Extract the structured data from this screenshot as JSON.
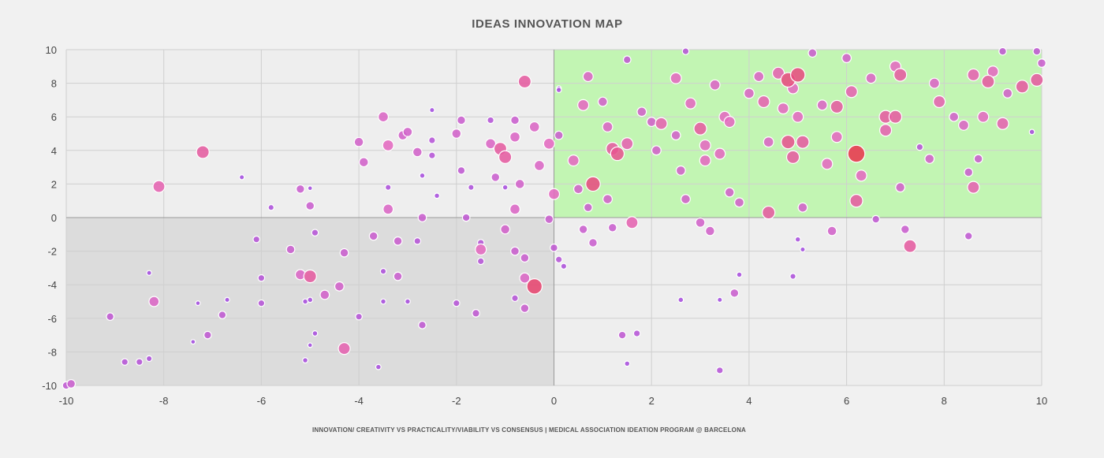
{
  "colors": {
    "background": "#f1f1f1",
    "quadrant_top_right": "#c2f5b3",
    "quadrant_bottom_left": "#dcdcdc",
    "quadrant_other": "#eeeeee",
    "grid": "#cfcfcf",
    "axis_zero": "#999999",
    "point_low": "#a44de0",
    "point_mid": "#e46ac0",
    "point_high": "#e8384f"
  },
  "chart_data": {
    "type": "scatter",
    "title": "IDEAS INNOVATION MAP",
    "footer": "INNOVATION/ CREATIVITY VS PRACTICALITY/VIABILITY VS CONSENSUS  |  MEDICAL ASSOCIATION IDEATION PROGRAM @ BARCELONA",
    "xlabel": "",
    "ylabel": "",
    "xlim": [
      -10,
      10
    ],
    "ylim": [
      -10,
      10
    ],
    "x_ticks": [
      -10,
      -8,
      -6,
      -4,
      -2,
      0,
      2,
      4,
      6,
      8,
      10
    ],
    "y_ticks": [
      10,
      8,
      6,
      4,
      2,
      0,
      -2,
      -4,
      -6,
      -8,
      -10
    ],
    "grid": true,
    "legend": "none",
    "bubble_size_meaning": "consensus",
    "points": [
      {
        "x": -7.2,
        "y": 3.9,
        "s": 0.55
      },
      {
        "x": -8.1,
        "y": 1.85,
        "s": 0.5
      },
      {
        "x": -6.4,
        "y": 2.4,
        "s": 0.1
      },
      {
        "x": -5.8,
        "y": 0.6,
        "s": 0.15
      },
      {
        "x": -5.2,
        "y": 1.7,
        "s": 0.3
      },
      {
        "x": -5.0,
        "y": 1.75,
        "s": 0.08
      },
      {
        "x": -5.0,
        "y": 0.7,
        "s": 0.3
      },
      {
        "x": -4.9,
        "y": -0.9,
        "s": 0.2
      },
      {
        "x": -5.4,
        "y": -1.9,
        "s": 0.3
      },
      {
        "x": -5.0,
        "y": -3.5,
        "s": 0.55
      },
      {
        "x": -5.2,
        "y": -3.4,
        "s": 0.4
      },
      {
        "x": -4.7,
        "y": -4.6,
        "s": 0.35
      },
      {
        "x": -4.4,
        "y": -4.1,
        "s": 0.35
      },
      {
        "x": -4.3,
        "y": -2.1,
        "s": 0.3
      },
      {
        "x": -4.3,
        "y": -7.8,
        "s": 0.5
      },
      {
        "x": -4.0,
        "y": 4.5,
        "s": 0.35
      },
      {
        "x": -3.9,
        "y": 3.3,
        "s": 0.35
      },
      {
        "x": -3.5,
        "y": 6.0,
        "s": 0.4
      },
      {
        "x": -3.4,
        "y": 4.3,
        "s": 0.45
      },
      {
        "x": -3.1,
        "y": 4.9,
        "s": 0.35
      },
      {
        "x": -3.0,
        "y": 5.1,
        "s": 0.35
      },
      {
        "x": -2.8,
        "y": 3.9,
        "s": 0.35
      },
      {
        "x": -3.4,
        "y": 0.5,
        "s": 0.4
      },
      {
        "x": -3.4,
        "y": 1.8,
        "s": 0.15
      },
      {
        "x": -3.7,
        "y": -1.1,
        "s": 0.3
      },
      {
        "x": -3.2,
        "y": -1.4,
        "s": 0.3
      },
      {
        "x": -3.2,
        "y": -3.5,
        "s": 0.3
      },
      {
        "x": -3.5,
        "y": -3.2,
        "s": 0.15
      },
      {
        "x": -4.0,
        "y": -5.9,
        "s": 0.2
      },
      {
        "x": -3.6,
        "y": -8.9,
        "s": 0.12
      },
      {
        "x": -2.5,
        "y": 6.4,
        "s": 0.1
      },
      {
        "x": -2.5,
        "y": 4.6,
        "s": 0.2
      },
      {
        "x": -2.5,
        "y": 3.7,
        "s": 0.2
      },
      {
        "x": -2.7,
        "y": 2.5,
        "s": 0.12
      },
      {
        "x": -2.4,
        "y": 1.3,
        "s": 0.12
      },
      {
        "x": -2.7,
        "y": 0.0,
        "s": 0.3
      },
      {
        "x": -2.8,
        "y": -1.4,
        "s": 0.2
      },
      {
        "x": -2.7,
        "y": -6.4,
        "s": 0.25
      },
      {
        "x": -2.0,
        "y": 5.0,
        "s": 0.35
      },
      {
        "x": -1.9,
        "y": 5.8,
        "s": 0.3
      },
      {
        "x": -1.9,
        "y": 2.8,
        "s": 0.25
      },
      {
        "x": -1.7,
        "y": 1.8,
        "s": 0.15
      },
      {
        "x": -1.8,
        "y": 0.0,
        "s": 0.25
      },
      {
        "x": -1.5,
        "y": -1.5,
        "s": 0.2
      },
      {
        "x": -1.5,
        "y": -2.6,
        "s": 0.2
      },
      {
        "x": -1.6,
        "y": -5.7,
        "s": 0.25
      },
      {
        "x": -2.0,
        "y": -5.1,
        "s": 0.2
      },
      {
        "x": -1.3,
        "y": 5.8,
        "s": 0.2
      },
      {
        "x": -1.3,
        "y": 4.4,
        "s": 0.4
      },
      {
        "x": -1.1,
        "y": 4.1,
        "s": 0.55
      },
      {
        "x": -1.0,
        "y": 3.6,
        "s": 0.55
      },
      {
        "x": -1.2,
        "y": 2.4,
        "s": 0.3
      },
      {
        "x": -1.0,
        "y": 1.8,
        "s": 0.12
      },
      {
        "x": -1.0,
        "y": -0.7,
        "s": 0.35
      },
      {
        "x": -1.5,
        "y": -1.9,
        "s": 0.45
      },
      {
        "x": -0.8,
        "y": 0.5,
        "s": 0.4
      },
      {
        "x": -0.8,
        "y": -2.0,
        "s": 0.3
      },
      {
        "x": -0.6,
        "y": 8.1,
        "s": 0.55
      },
      {
        "x": -0.8,
        "y": 5.8,
        "s": 0.3
      },
      {
        "x": -0.8,
        "y": 4.8,
        "s": 0.4
      },
      {
        "x": -0.7,
        "y": 2.0,
        "s": 0.35
      },
      {
        "x": -0.6,
        "y": -2.4,
        "s": 0.3
      },
      {
        "x": -0.6,
        "y": -3.6,
        "s": 0.4
      },
      {
        "x": -0.6,
        "y": -5.4,
        "s": 0.3
      },
      {
        "x": -0.8,
        "y": -4.8,
        "s": 0.2
      },
      {
        "x": -0.4,
        "y": -4.1,
        "s": 0.7
      },
      {
        "x": -0.4,
        "y": 5.4,
        "s": 0.4
      },
      {
        "x": -0.3,
        "y": 3.1,
        "s": 0.4
      },
      {
        "x": -0.1,
        "y": 4.4,
        "s": 0.45
      },
      {
        "x": -0.1,
        "y": -0.1,
        "s": 0.3
      },
      {
        "x": 0.0,
        "y": 1.4,
        "s": 0.45
      },
      {
        "x": 0.0,
        "y": -1.8,
        "s": 0.25
      },
      {
        "x": 0.1,
        "y": -2.5,
        "s": 0.2
      },
      {
        "x": 0.1,
        "y": 4.9,
        "s": 0.3
      },
      {
        "x": 0.1,
        "y": 7.6,
        "s": 0.12
      },
      {
        "x": 0.1,
        "y": 7.7,
        "s": 0.1
      },
      {
        "x": 0.2,
        "y": -2.9,
        "s": 0.15
      },
      {
        "x": 0.4,
        "y": 3.4,
        "s": 0.45
      },
      {
        "x": 0.5,
        "y": 1.7,
        "s": 0.35
      },
      {
        "x": 0.7,
        "y": 8.4,
        "s": 0.4
      },
      {
        "x": 0.8,
        "y": 2.0,
        "s": 0.65
      },
      {
        "x": 0.7,
        "y": 0.6,
        "s": 0.3
      },
      {
        "x": 0.6,
        "y": -0.7,
        "s": 0.3
      },
      {
        "x": 0.8,
        "y": -1.5,
        "s": 0.3
      },
      {
        "x": 0.6,
        "y": 6.7,
        "s": 0.45
      },
      {
        "x": 1.0,
        "y": 6.9,
        "s": 0.35
      },
      {
        "x": 1.1,
        "y": 5.4,
        "s": 0.4
      },
      {
        "x": 1.2,
        "y": 4.1,
        "s": 0.55
      },
      {
        "x": 1.3,
        "y": 3.8,
        "s": 0.6
      },
      {
        "x": 1.1,
        "y": 1.1,
        "s": 0.35
      },
      {
        "x": 1.2,
        "y": -0.6,
        "s": 0.3
      },
      {
        "x": 1.5,
        "y": 4.4,
        "s": 0.5
      },
      {
        "x": 1.5,
        "y": 9.4,
        "s": 0.25
      },
      {
        "x": 1.6,
        "y": -0.3,
        "s": 0.5
      },
      {
        "x": 1.4,
        "y": -7.0,
        "s": 0.25
      },
      {
        "x": 1.7,
        "y": -6.9,
        "s": 0.2
      },
      {
        "x": 1.5,
        "y": -8.7,
        "s": 0.12
      },
      {
        "x": 1.8,
        "y": 6.3,
        "s": 0.35
      },
      {
        "x": 2.0,
        "y": 5.7,
        "s": 0.35
      },
      {
        "x": 2.1,
        "y": 4.0,
        "s": 0.35
      },
      {
        "x": 2.2,
        "y": 5.6,
        "s": 0.5
      },
      {
        "x": 2.5,
        "y": 8.3,
        "s": 0.45
      },
      {
        "x": 2.5,
        "y": 4.9,
        "s": 0.35
      },
      {
        "x": 2.6,
        "y": 2.8,
        "s": 0.35
      },
      {
        "x": 2.7,
        "y": 1.1,
        "s": 0.35
      },
      {
        "x": 2.6,
        "y": -4.9,
        "s": 0.12
      },
      {
        "x": 2.7,
        "y": 9.9,
        "s": 0.2
      },
      {
        "x": 2.8,
        "y": 6.8,
        "s": 0.45
      },
      {
        "x": 3.0,
        "y": 5.3,
        "s": 0.55
      },
      {
        "x": 3.1,
        "y": 4.3,
        "s": 0.45
      },
      {
        "x": 3.1,
        "y": 3.4,
        "s": 0.45
      },
      {
        "x": 3.2,
        "y": -0.8,
        "s": 0.35
      },
      {
        "x": 3.0,
        "y": -0.3,
        "s": 0.35
      },
      {
        "x": 3.3,
        "y": 7.9,
        "s": 0.4
      },
      {
        "x": 3.5,
        "y": 6.0,
        "s": 0.45
      },
      {
        "x": 3.6,
        "y": 5.7,
        "s": 0.45
      },
      {
        "x": 3.4,
        "y": 3.8,
        "s": 0.45
      },
      {
        "x": 3.6,
        "y": 1.5,
        "s": 0.35
      },
      {
        "x": 3.4,
        "y": -4.9,
        "s": 0.1
      },
      {
        "x": 3.4,
        "y": -9.1,
        "s": 0.2
      },
      {
        "x": 3.7,
        "y": -4.5,
        "s": 0.3
      },
      {
        "x": 3.8,
        "y": -3.4,
        "s": 0.12
      },
      {
        "x": 3.8,
        "y": 0.9,
        "s": 0.35
      },
      {
        "x": 4.0,
        "y": 7.4,
        "s": 0.4
      },
      {
        "x": 4.2,
        "y": 8.4,
        "s": 0.4
      },
      {
        "x": 4.3,
        "y": 6.9,
        "s": 0.5
      },
      {
        "x": 4.4,
        "y": 4.5,
        "s": 0.4
      },
      {
        "x": 4.4,
        "y": 0.3,
        "s": 0.55
      },
      {
        "x": 4.6,
        "y": 8.6,
        "s": 0.5
      },
      {
        "x": 4.7,
        "y": 6.5,
        "s": 0.45
      },
      {
        "x": 4.8,
        "y": 8.2,
        "s": 0.65
      },
      {
        "x": 4.8,
        "y": 4.5,
        "s": 0.6
      },
      {
        "x": 4.9,
        "y": 7.7,
        "s": 0.45
      },
      {
        "x": 5.0,
        "y": 8.5,
        "s": 0.65
      },
      {
        "x": 5.0,
        "y": 6.0,
        "s": 0.45
      },
      {
        "x": 4.9,
        "y": 3.6,
        "s": 0.55
      },
      {
        "x": 5.1,
        "y": 4.5,
        "s": 0.55
      },
      {
        "x": 5.3,
        "y": 9.8,
        "s": 0.3
      },
      {
        "x": 5.1,
        "y": 0.6,
        "s": 0.35
      },
      {
        "x": 5.0,
        "y": -1.3,
        "s": 0.12
      },
      {
        "x": 5.1,
        "y": -1.9,
        "s": 0.1
      },
      {
        "x": 4.9,
        "y": -3.5,
        "s": 0.15
      },
      {
        "x": 5.5,
        "y": 6.7,
        "s": 0.4
      },
      {
        "x": 5.6,
        "y": 3.2,
        "s": 0.45
      },
      {
        "x": 5.7,
        "y": -0.8,
        "s": 0.35
      },
      {
        "x": 5.8,
        "y": 6.6,
        "s": 0.55
      },
      {
        "x": 5.8,
        "y": 4.8,
        "s": 0.45
      },
      {
        "x": 6.0,
        "y": 9.5,
        "s": 0.35
      },
      {
        "x": 6.1,
        "y": 7.5,
        "s": 0.5
      },
      {
        "x": 6.2,
        "y": 3.8,
        "s": 0.8
      },
      {
        "x": 6.2,
        "y": 1.0,
        "s": 0.55
      },
      {
        "x": 6.3,
        "y": 2.5,
        "s": 0.45
      },
      {
        "x": 6.5,
        "y": 8.3,
        "s": 0.4
      },
      {
        "x": 6.6,
        "y": -0.1,
        "s": 0.25
      },
      {
        "x": 6.8,
        "y": 5.2,
        "s": 0.5
      },
      {
        "x": 6.8,
        "y": 6.0,
        "s": 0.55
      },
      {
        "x": 7.0,
        "y": 9.0,
        "s": 0.45
      },
      {
        "x": 7.0,
        "y": 6.0,
        "s": 0.55
      },
      {
        "x": 7.1,
        "y": 8.5,
        "s": 0.55
      },
      {
        "x": 7.1,
        "y": 1.8,
        "s": 0.35
      },
      {
        "x": 7.2,
        "y": -0.7,
        "s": 0.3
      },
      {
        "x": 7.3,
        "y": -1.7,
        "s": 0.55
      },
      {
        "x": 7.5,
        "y": 4.2,
        "s": 0.2
      },
      {
        "x": 7.7,
        "y": 3.5,
        "s": 0.35
      },
      {
        "x": 7.8,
        "y": 8.0,
        "s": 0.4
      },
      {
        "x": 7.9,
        "y": 6.9,
        "s": 0.5
      },
      {
        "x": 8.2,
        "y": 6.0,
        "s": 0.35
      },
      {
        "x": 8.4,
        "y": 5.5,
        "s": 0.4
      },
      {
        "x": 8.5,
        "y": 2.7,
        "s": 0.3
      },
      {
        "x": 8.5,
        "y": -1.1,
        "s": 0.25
      },
      {
        "x": 8.6,
        "y": 8.5,
        "s": 0.5
      },
      {
        "x": 8.6,
        "y": 1.8,
        "s": 0.5
      },
      {
        "x": 8.7,
        "y": 3.5,
        "s": 0.3
      },
      {
        "x": 8.8,
        "y": 6.0,
        "s": 0.45
      },
      {
        "x": 8.9,
        "y": 8.1,
        "s": 0.55
      },
      {
        "x": 9.0,
        "y": 8.7,
        "s": 0.45
      },
      {
        "x": 9.2,
        "y": 5.6,
        "s": 0.5
      },
      {
        "x": 9.2,
        "y": 9.9,
        "s": 0.25
      },
      {
        "x": 9.3,
        "y": 7.4,
        "s": 0.35
      },
      {
        "x": 9.6,
        "y": 7.8,
        "s": 0.55
      },
      {
        "x": 9.9,
        "y": 8.2,
        "s": 0.55
      },
      {
        "x": 9.9,
        "y": 9.9,
        "s": 0.25
      },
      {
        "x": 10.0,
        "y": 9.2,
        "s": 0.3
      },
      {
        "x": 9.8,
        "y": 5.1,
        "s": 0.12
      },
      {
        "x": -8.2,
        "y": -5.0,
        "s": 0.4
      },
      {
        "x": -9.1,
        "y": -5.9,
        "s": 0.25
      },
      {
        "x": -8.3,
        "y": -3.3,
        "s": 0.1
      },
      {
        "x": -7.1,
        "y": -7.0,
        "s": 0.25
      },
      {
        "x": -6.8,
        "y": -5.8,
        "s": 0.25
      },
      {
        "x": -6.7,
        "y": -4.9,
        "s": 0.1
      },
      {
        "x": -7.3,
        "y": -5.1,
        "s": 0.08
      },
      {
        "x": -7.4,
        "y": -7.4,
        "s": 0.08
      },
      {
        "x": -8.8,
        "y": -8.6,
        "s": 0.2
      },
      {
        "x": -8.5,
        "y": -8.6,
        "s": 0.2
      },
      {
        "x": -8.3,
        "y": -8.4,
        "s": 0.15
      },
      {
        "x": -9.9,
        "y": -9.9,
        "s": 0.3
      },
      {
        "x": -10.0,
        "y": -10.0,
        "s": 0.25
      },
      {
        "x": -6.1,
        "y": -1.3,
        "s": 0.2
      },
      {
        "x": -6.0,
        "y": -3.6,
        "s": 0.2
      },
      {
        "x": -6.0,
        "y": -5.1,
        "s": 0.2
      },
      {
        "x": -5.1,
        "y": -5.0,
        "s": 0.12
      },
      {
        "x": -5.0,
        "y": -4.9,
        "s": 0.12
      },
      {
        "x": -5.1,
        "y": -8.5,
        "s": 0.12
      },
      {
        "x": -4.9,
        "y": -6.9,
        "s": 0.12
      },
      {
        "x": -5.0,
        "y": -7.6,
        "s": 0.08
      },
      {
        "x": -3.5,
        "y": -5.0,
        "s": 0.12
      },
      {
        "x": -3.0,
        "y": -5.0,
        "s": 0.12
      }
    ]
  }
}
